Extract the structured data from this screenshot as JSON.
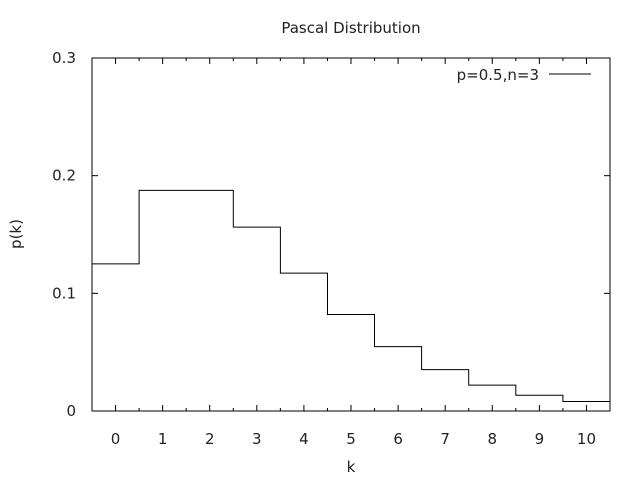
{
  "chart_data": {
    "type": "line",
    "style": "step",
    "title": "Pascal Distribution",
    "xlabel": "k",
    "ylabel": "p(k)",
    "xlim": [
      -0.5,
      10.5
    ],
    "ylim": [
      0,
      0.3
    ],
    "x_ticks": [
      0,
      1,
      2,
      3,
      4,
      5,
      6,
      7,
      8,
      9,
      10
    ],
    "y_ticks": [
      "0",
      "0.1",
      "0.2",
      "0.3"
    ],
    "legend_position": "top-right",
    "grid": false,
    "series": [
      {
        "name": "p=0.5,n=3",
        "color": "#000000",
        "x": [
          0,
          1,
          2,
          3,
          4,
          5,
          6,
          7,
          8,
          9,
          10
        ],
        "y": [
          0.125,
          0.1875,
          0.1875,
          0.15625,
          0.1172,
          0.082,
          0.0547,
          0.0352,
          0.022,
          0.0134,
          0.0081
        ]
      }
    ]
  }
}
